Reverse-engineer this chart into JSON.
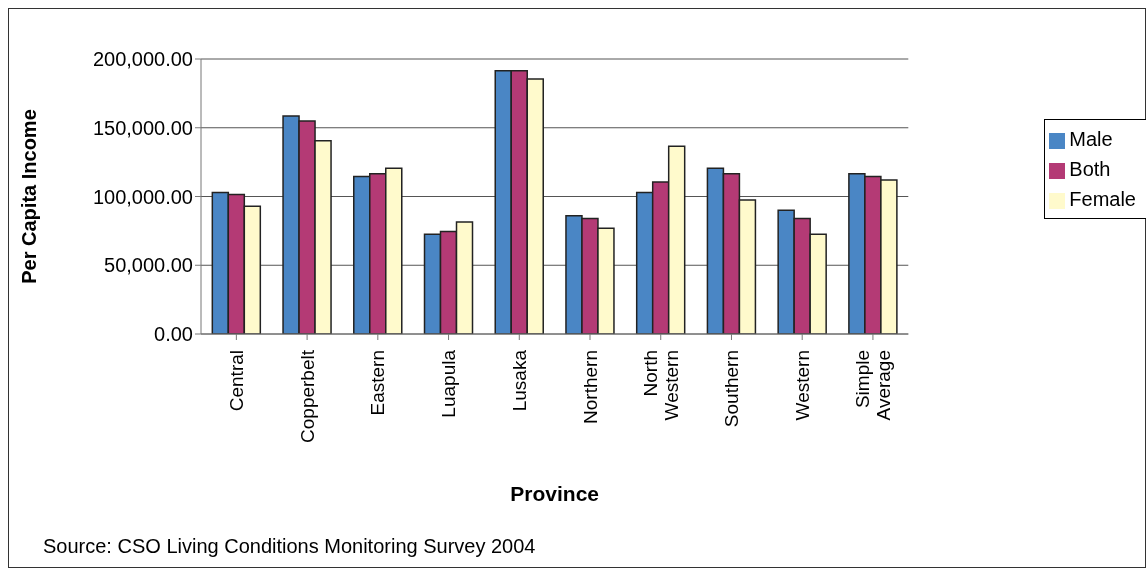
{
  "chart_data": {
    "type": "bar",
    "xlabel": "Province",
    "ylabel": "Per Capita Income",
    "categories": [
      "Central",
      "Copperbelt",
      "Eastern",
      "Luapula",
      "Lusaka",
      "Northern",
      "North Western",
      "Southern",
      "Western",
      "Simple Average"
    ],
    "series": [
      {
        "name": "Male",
        "color": "#4a86c5",
        "values": [
          103000,
          158500,
          114500,
          72500,
          191500,
          86000,
          103000,
          120500,
          90000,
          116500
        ]
      },
      {
        "name": "Both",
        "color": "#b43a75",
        "values": [
          101500,
          155000,
          116500,
          74500,
          191500,
          84000,
          110500,
          116500,
          84000,
          114500
        ]
      },
      {
        "name": "Female",
        "color": "#fffacc",
        "values": [
          93000,
          140500,
          120500,
          81500,
          185500,
          77000,
          136500,
          97500,
          72500,
          112000
        ]
      }
    ],
    "ylim": [
      0,
      200000
    ],
    "yticks": [
      {
        "value": 0,
        "label": "0.00"
      },
      {
        "value": 50000,
        "label": "50,000.00"
      },
      {
        "value": 100000,
        "label": "100,000.00"
      },
      {
        "value": 150000,
        "label": "150,000.00"
      },
      {
        "value": 200000,
        "label": "200,000.00"
      }
    ],
    "grid": "y",
    "legend": "right",
    "annotations": [
      "Source: CSO Living Conditions Monitoring Survey 2004"
    ]
  }
}
